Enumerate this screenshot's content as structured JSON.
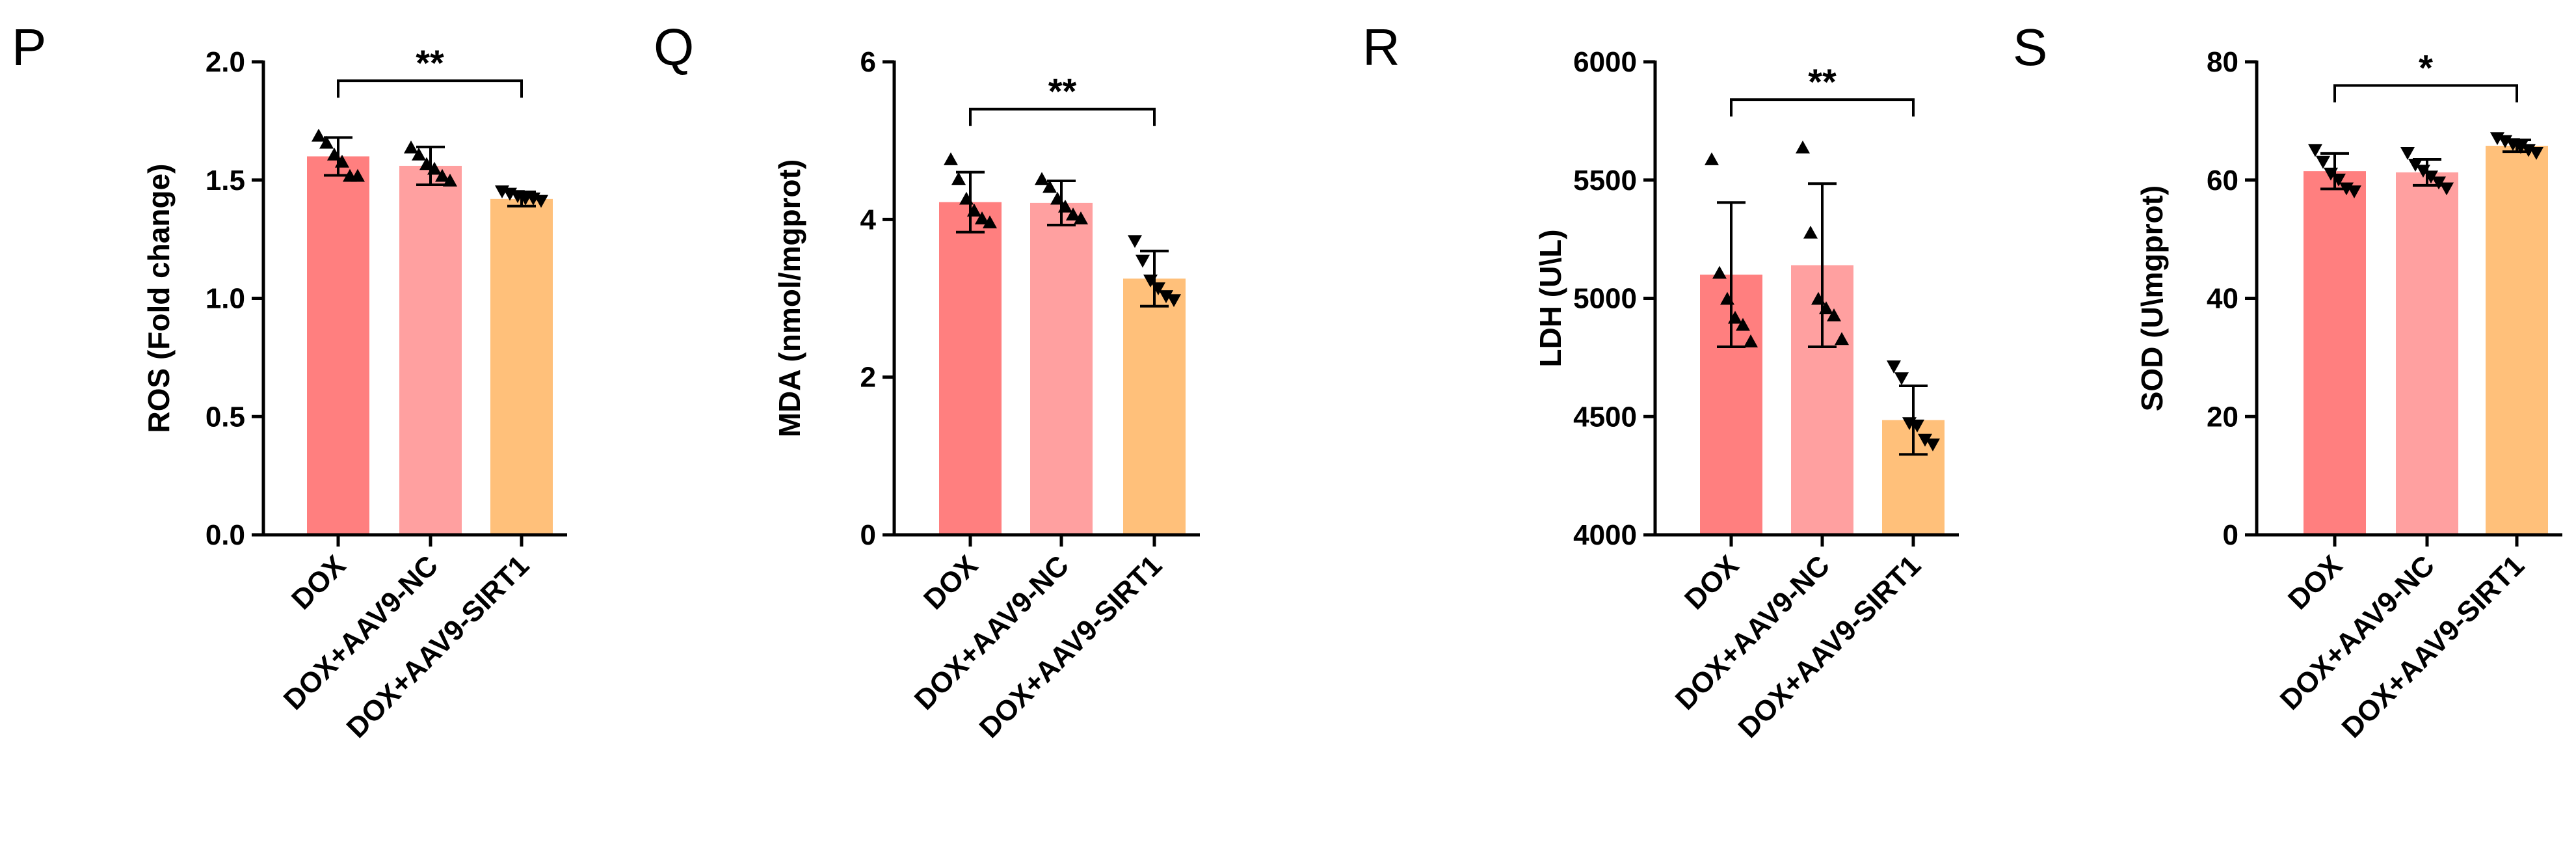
{
  "colors": {
    "DOX": "#FF7F7F",
    "DOX+AAV9-NC": "#FFA0A0",
    "DOX+AAV9-SIRT1": "#FFC07A",
    "axis": "#000000"
  },
  "chart_data": [
    {
      "panel": "P",
      "type": "bar",
      "ylabel": "ROS (Fold change)",
      "categories": [
        "DOX",
        "DOX+AAV9-NC",
        "DOX+AAV9-SIRT1"
      ],
      "ylim": [
        0,
        2.0
      ],
      "yticks": [
        "0.0",
        "0.5",
        "1.0",
        "1.5",
        "2.0"
      ],
      "ytick_values": [
        0,
        0.5,
        1.0,
        1.5,
        2.0
      ],
      "means": [
        1.6,
        1.56,
        1.42
      ],
      "sd": [
        0.08,
        0.08,
        0.03
      ],
      "markers": [
        "up",
        "up",
        "down"
      ],
      "points": [
        [
          1.69,
          1.66,
          1.61,
          1.58,
          1.52,
          1.52
        ],
        [
          1.64,
          1.61,
          1.57,
          1.55,
          1.52,
          1.5
        ],
        [
          1.45,
          1.44,
          1.43,
          1.42,
          1.42,
          1.41
        ]
      ],
      "significance": [
        {
          "from": 0,
          "to": 2,
          "label": "**",
          "y": 1.92
        }
      ]
    },
    {
      "panel": "Q",
      "type": "bar",
      "ylabel": "MDA (nmol/mgprot)",
      "categories": [
        "DOX",
        "DOX+AAV9-NC",
        "DOX+AAV9-SIRT1"
      ],
      "ylim": [
        0,
        6
      ],
      "yticks": [
        "0",
        "2",
        "4",
        "6"
      ],
      "ytick_values": [
        0,
        2,
        4,
        6
      ],
      "means": [
        4.22,
        4.21,
        3.25
      ],
      "sd": [
        0.38,
        0.28,
        0.35
      ],
      "markers": [
        "up",
        "up",
        "down"
      ],
      "points": [
        [
          4.77,
          4.52,
          4.27,
          4.12,
          4.02,
          3.97
        ],
        [
          4.52,
          4.42,
          4.27,
          4.17,
          4.07,
          4.02
        ],
        [
          3.72,
          3.47,
          3.22,
          3.12,
          3.02,
          2.97
        ]
      ],
      "significance": [
        {
          "from": 0,
          "to": 2,
          "label": "**",
          "y": 5.4
        }
      ]
    },
    {
      "panel": "R",
      "type": "bar",
      "ylabel": "LDH (U\\L)",
      "categories": [
        "DOX",
        "DOX+AAV9-NC",
        "DOX+AAV9-SIRT1"
      ],
      "ylim": [
        4000,
        6000
      ],
      "yticks": [
        "4000",
        "4500",
        "5000",
        "5500",
        "6000"
      ],
      "ytick_values": [
        4000,
        4500,
        5000,
        5500,
        6000
      ],
      "means": [
        5100,
        5140,
        4485
      ],
      "sd": [
        305,
        345,
        145
      ],
      "markers": [
        "up",
        "up",
        "down"
      ],
      "points": [
        [
          5590,
          5110,
          5000,
          4920,
          4890,
          4820
        ],
        [
          5640,
          5280,
          5000,
          4960,
          4930,
          4830
        ],
        [
          4710,
          4660,
          4470,
          4460,
          4400,
          4380
        ]
      ],
      "significance": [
        {
          "from": 0,
          "to": 2,
          "label": "**",
          "y": 5840
        }
      ]
    },
    {
      "panel": "S",
      "type": "bar",
      "ylabel": "SOD (U\\mgprot)",
      "categories": [
        "DOX",
        "DOX+AAV9-NC",
        "DOX+AAV9-SIRT1"
      ],
      "ylim": [
        0,
        80
      ],
      "yticks": [
        "0",
        "20",
        "40",
        "60",
        "80"
      ],
      "ytick_values": [
        0,
        20,
        40,
        60,
        80
      ],
      "means": [
        61.5,
        61.3,
        65.8
      ],
      "sd": [
        3.0,
        2.2,
        1.0
      ],
      "markers": [
        "down",
        "down",
        "down"
      ],
      "points": [
        [
          65.0,
          63.0,
          61.0,
          60.0,
          58.5,
          58.0
        ],
        [
          64.5,
          62.5,
          61.5,
          60.5,
          59.5,
          58.5
        ],
        [
          67.0,
          66.5,
          66.0,
          65.5,
          65.0,
          64.5
        ]
      ],
      "significance": [
        {
          "from": 0,
          "to": 2,
          "label": "*",
          "y": 76
        }
      ]
    }
  ]
}
